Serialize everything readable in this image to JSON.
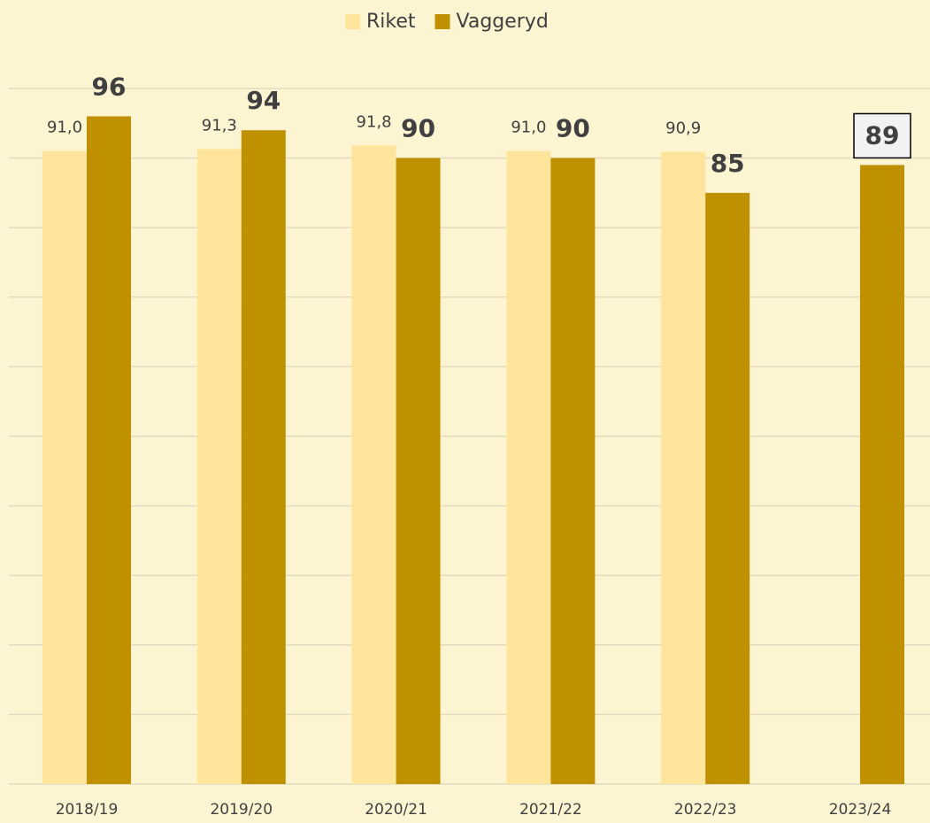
{
  "chart_data": {
    "type": "bar",
    "categories": [
      "2018/19",
      "2019/20",
      "2020/21",
      "2021/22",
      "2022/23",
      "2023/24"
    ],
    "series": [
      {
        "name": "Riket",
        "color": "#fee59b",
        "values": [
          91.0,
          91.3,
          91.8,
          91.0,
          90.9,
          null
        ],
        "value_labels": [
          "91,0",
          "91,3",
          "91,8",
          "91,0",
          "90,9",
          null
        ]
      },
      {
        "name": "Vaggeryd",
        "color": "#bf9000",
        "values": [
          96,
          94,
          90,
          90,
          85,
          89
        ]
      }
    ],
    "ylim": [
      0,
      100
    ],
    "yticks": [
      0,
      10,
      20,
      30,
      40,
      50,
      60,
      70,
      80,
      90,
      100
    ],
    "grid": true,
    "legend": "top"
  }
}
